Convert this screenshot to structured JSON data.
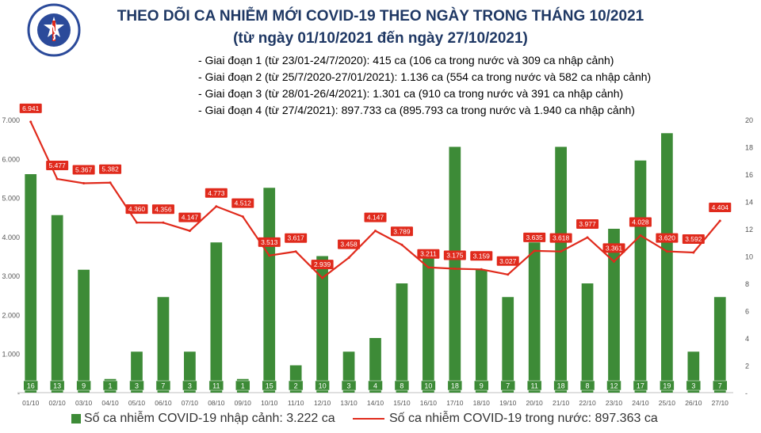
{
  "header": {
    "title": "THEO DÕI CA NHIỄM MỚI COVID-19 THEO NGÀY TRONG THÁNG 10/2021",
    "subtitle": "(từ ngày 01/10/2021 đến ngày 27/10/2021)",
    "notes": [
      "- Giai đoạn 1 (từ 23/01-24/7/2020): 415 ca (106 ca trong nước và 309 ca nhập cảnh)",
      "- Giai đoạn 2 (từ 25/7/2020-27/01/2021): 1.136 ca (554 ca trong nước và 582 ca nhập cảnh)",
      "- Giai đoạn 3 (từ 28/01-26/4/2021): 1.301 ca (910 ca trong nước và 391 ca nhập cảnh)",
      "- Giai đoạn 4 (từ 27/4/2021): 897.733 ca (895.793 ca trong nước và 1.940 ca nhập cảnh)"
    ]
  },
  "logo": {
    "top_text": "BỘ Y TẾ",
    "bottom_text": "MINISTRY OF HEALTH"
  },
  "legend": {
    "bars": "Số ca nhiễm COVID-19 nhập cảnh: 3.222 ca",
    "line": "Số ca nhiễm COVID-19 trong nước: 897.363 ca"
  },
  "colors": {
    "bar": "#3d8b37",
    "line": "#e02a1c",
    "title": "#1f3864",
    "label_bg": "#e02a1c"
  },
  "chart_data": {
    "type": "bar+line",
    "categories": [
      "01/10",
      "02/10",
      "03/10",
      "04/10",
      "05/10",
      "06/10",
      "07/10",
      "08/10",
      "09/10",
      "10/10",
      "11/10",
      "12/10",
      "13/10",
      "14/10",
      "15/10",
      "16/10",
      "17/10",
      "18/10",
      "19/10",
      "20/10",
      "21/10",
      "22/10",
      "23/10",
      "24/10",
      "25/10",
      "26/10",
      "27/10"
    ],
    "series": [
      {
        "name": "Số ca nhiễm COVID-19 nhập cảnh: 3.222 ca",
        "type": "bar",
        "axis": "right",
        "values": [
          16,
          13,
          9,
          1,
          3,
          7,
          3,
          11,
          1,
          15,
          2,
          10,
          3,
          4,
          8,
          10,
          18,
          9,
          7,
          11,
          18,
          8,
          12,
          17,
          19,
          3,
          7
        ]
      },
      {
        "name": "Số ca nhiễm COVID-19 trong nước: 897.363 ca",
        "type": "line",
        "axis": "left",
        "values": [
          6941,
          5477,
          5367,
          5382,
          4360,
          4356,
          4147,
          4773,
          4512,
          3513,
          3617,
          2939,
          3458,
          4147,
          3789,
          3211,
          3175,
          3159,
          3027,
          3635,
          3618,
          3977,
          3361,
          4028,
          3620,
          3592,
          4404
        ],
        "labels": [
          "6.941",
          "5.477",
          "5.367",
          "5.382",
          "4.360",
          "4.356",
          "4.147",
          "4.773",
          "4.512",
          "3.513",
          "3.617",
          "2.939",
          "3.458",
          "4.147",
          "3.789",
          "3.211",
          "3.175",
          "3.159",
          "3.027",
          "3.635",
          "3.618",
          "3.977",
          "3.361",
          "4.028",
          "3.620",
          "3.592",
          "4.404"
        ]
      }
    ],
    "y_left": {
      "range": [
        0,
        7000
      ],
      "ticks": [
        0,
        1000,
        2000,
        3000,
        4000,
        5000,
        6000,
        7000
      ],
      "tick_labels": [
        "-",
        "1.000",
        "2.000",
        "3.000",
        "4.000",
        "5.000",
        "6.000",
        "7.000"
      ]
    },
    "y_right": {
      "range": [
        0,
        20
      ],
      "ticks": [
        0,
        2,
        4,
        6,
        8,
        10,
        12,
        14,
        16,
        18,
        20
      ],
      "tick_labels": [
        "-",
        "2",
        "4",
        "6",
        "8",
        "10",
        "12",
        "14",
        "16",
        "18",
        "20"
      ]
    },
    "grid": false,
    "legend_position": "bottom"
  }
}
